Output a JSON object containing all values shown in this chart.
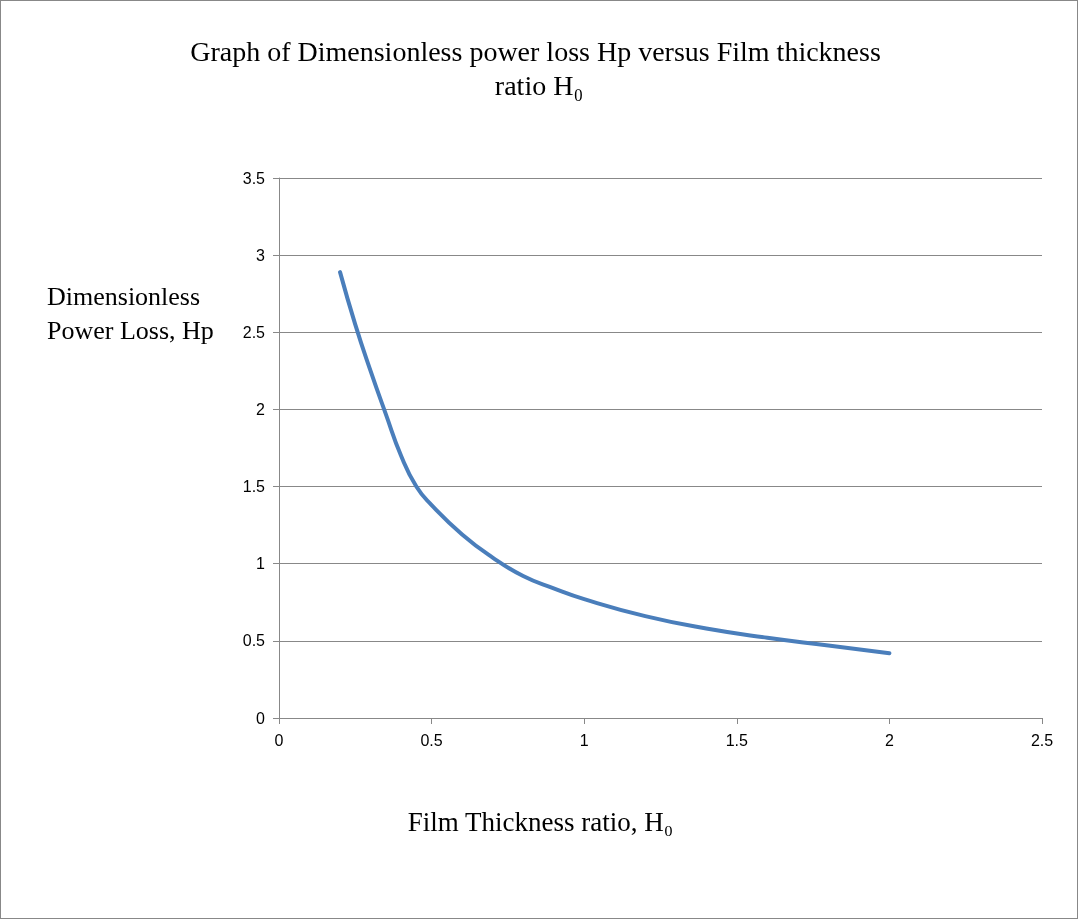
{
  "chart_data": {
    "type": "line",
    "title": "Graph of Dimensionless power loss Hp versus Film thickness ratio H₀",
    "xlabel": "Film Thickness ratio, H₀",
    "ylabel": "Dimensionless Power Loss, Hp",
    "x": [
      0.2,
      0.25,
      0.3,
      0.35,
      0.4,
      0.45,
      0.5,
      0.6,
      0.7,
      0.8,
      0.9,
      1.0,
      1.2,
      1.4,
      1.6,
      1.8,
      2.0
    ],
    "series": [
      {
        "color": "#4a7ebb",
        "values": [
          2.89,
          2.55,
          2.25,
          1.97,
          1.7,
          1.5,
          1.38,
          1.19,
          1.04,
          0.92,
          0.84,
          0.77,
          0.66,
          0.58,
          0.52,
          0.47,
          0.42
        ]
      }
    ],
    "xlim": [
      0,
      2.5
    ],
    "xticks": [
      0,
      0.5,
      1,
      1.5,
      2,
      2.5
    ],
    "ylim": [
      0,
      3.5
    ],
    "yticks": [
      0,
      0.5,
      1,
      1.5,
      2,
      2.5,
      3,
      3.5
    ],
    "grid": "y",
    "marker": "none",
    "line_style": "solid"
  }
}
